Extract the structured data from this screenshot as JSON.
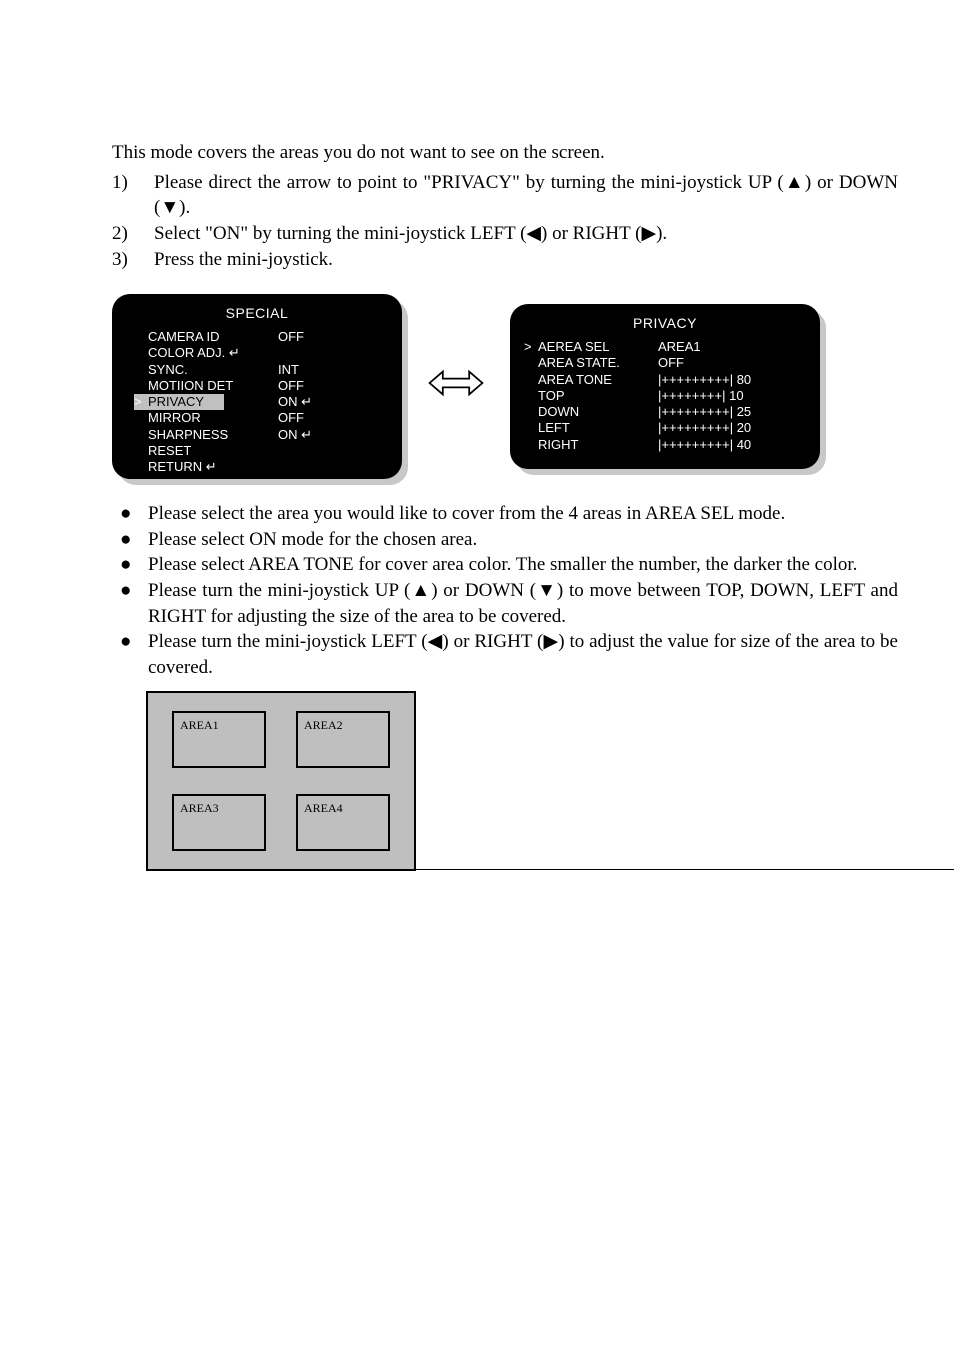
{
  "intro": "This mode covers the areas you do not want to see on the screen.",
  "steps": [
    "Please direct the arrow to point to \"PRIVACY\" by turning the mini-joystick UP (▲) or DOWN (▼).",
    "Select \"ON\" by turning the mini-joystick LEFT (◀) or RIGHT (▶).",
    "Press the mini-joystick."
  ],
  "panel_left": {
    "title": "SPECIAL",
    "rows": [
      {
        "label": "CAMERA ID",
        "value": "OFF"
      },
      {
        "label": "COLOR ADJ.",
        "value": "",
        "label_enter": true
      },
      {
        "label": "SYNC.",
        "value": "INT"
      },
      {
        "label": "MOTIION DET",
        "value": "OFF"
      },
      {
        "label": "PRIVACY",
        "value": "ON",
        "selected": true,
        "value_enter": true,
        "highlight": true
      },
      {
        "label": "MIRROR",
        "value": "OFF"
      },
      {
        "label": "SHARPNESS",
        "value": "ON",
        "value_enter": true
      },
      {
        "label": "RESET",
        "value": ""
      },
      {
        "label": "RETURN",
        "value": "",
        "label_enter": true
      }
    ]
  },
  "panel_right": {
    "title": "PRIVACY",
    "rows": [
      {
        "label": "AEREA SEL",
        "value": "AREA1",
        "selected": true
      },
      {
        "label": "AREA STATE.",
        "value": "OFF"
      },
      {
        "label": "AREA TONE",
        "value": "|+++++++++| 80"
      },
      {
        "label": "TOP",
        "value": "|++++++++| 10"
      },
      {
        "label": "DOWN",
        "value": "|+++++++++| 25"
      },
      {
        "label": "LEFT",
        "value": "|+++++++++| 20"
      },
      {
        "label": "RIGHT",
        "value": "|+++++++++| 40"
      }
    ]
  },
  "bullets": [
    "Please select the area you would like to cover from the 4 areas in AREA SEL mode.",
    "Please select ON mode for the chosen area.",
    "Please select AREA TONE for cover area color. The smaller the number, the darker the color.",
    "Please turn the mini-joystick UP (▲) or DOWN (▼) to move between TOP, DOWN, LEFT and RIGHT for adjusting the size of the area to be covered.",
    "Please turn the mini-joystick LEFT (◀) or RIGHT (▶) to adjust the value for size of the area to be covered."
  ],
  "areas": [
    "AREA1",
    "AREA2",
    "AREA3",
    "AREA4"
  ],
  "colors": {
    "panel_bg": "#000000",
    "panel_fg": "#ffffff",
    "panel_shadow": "#c8c8c8",
    "area_bg": "#bfbfbf",
    "highlight": "#c0c0c0"
  }
}
